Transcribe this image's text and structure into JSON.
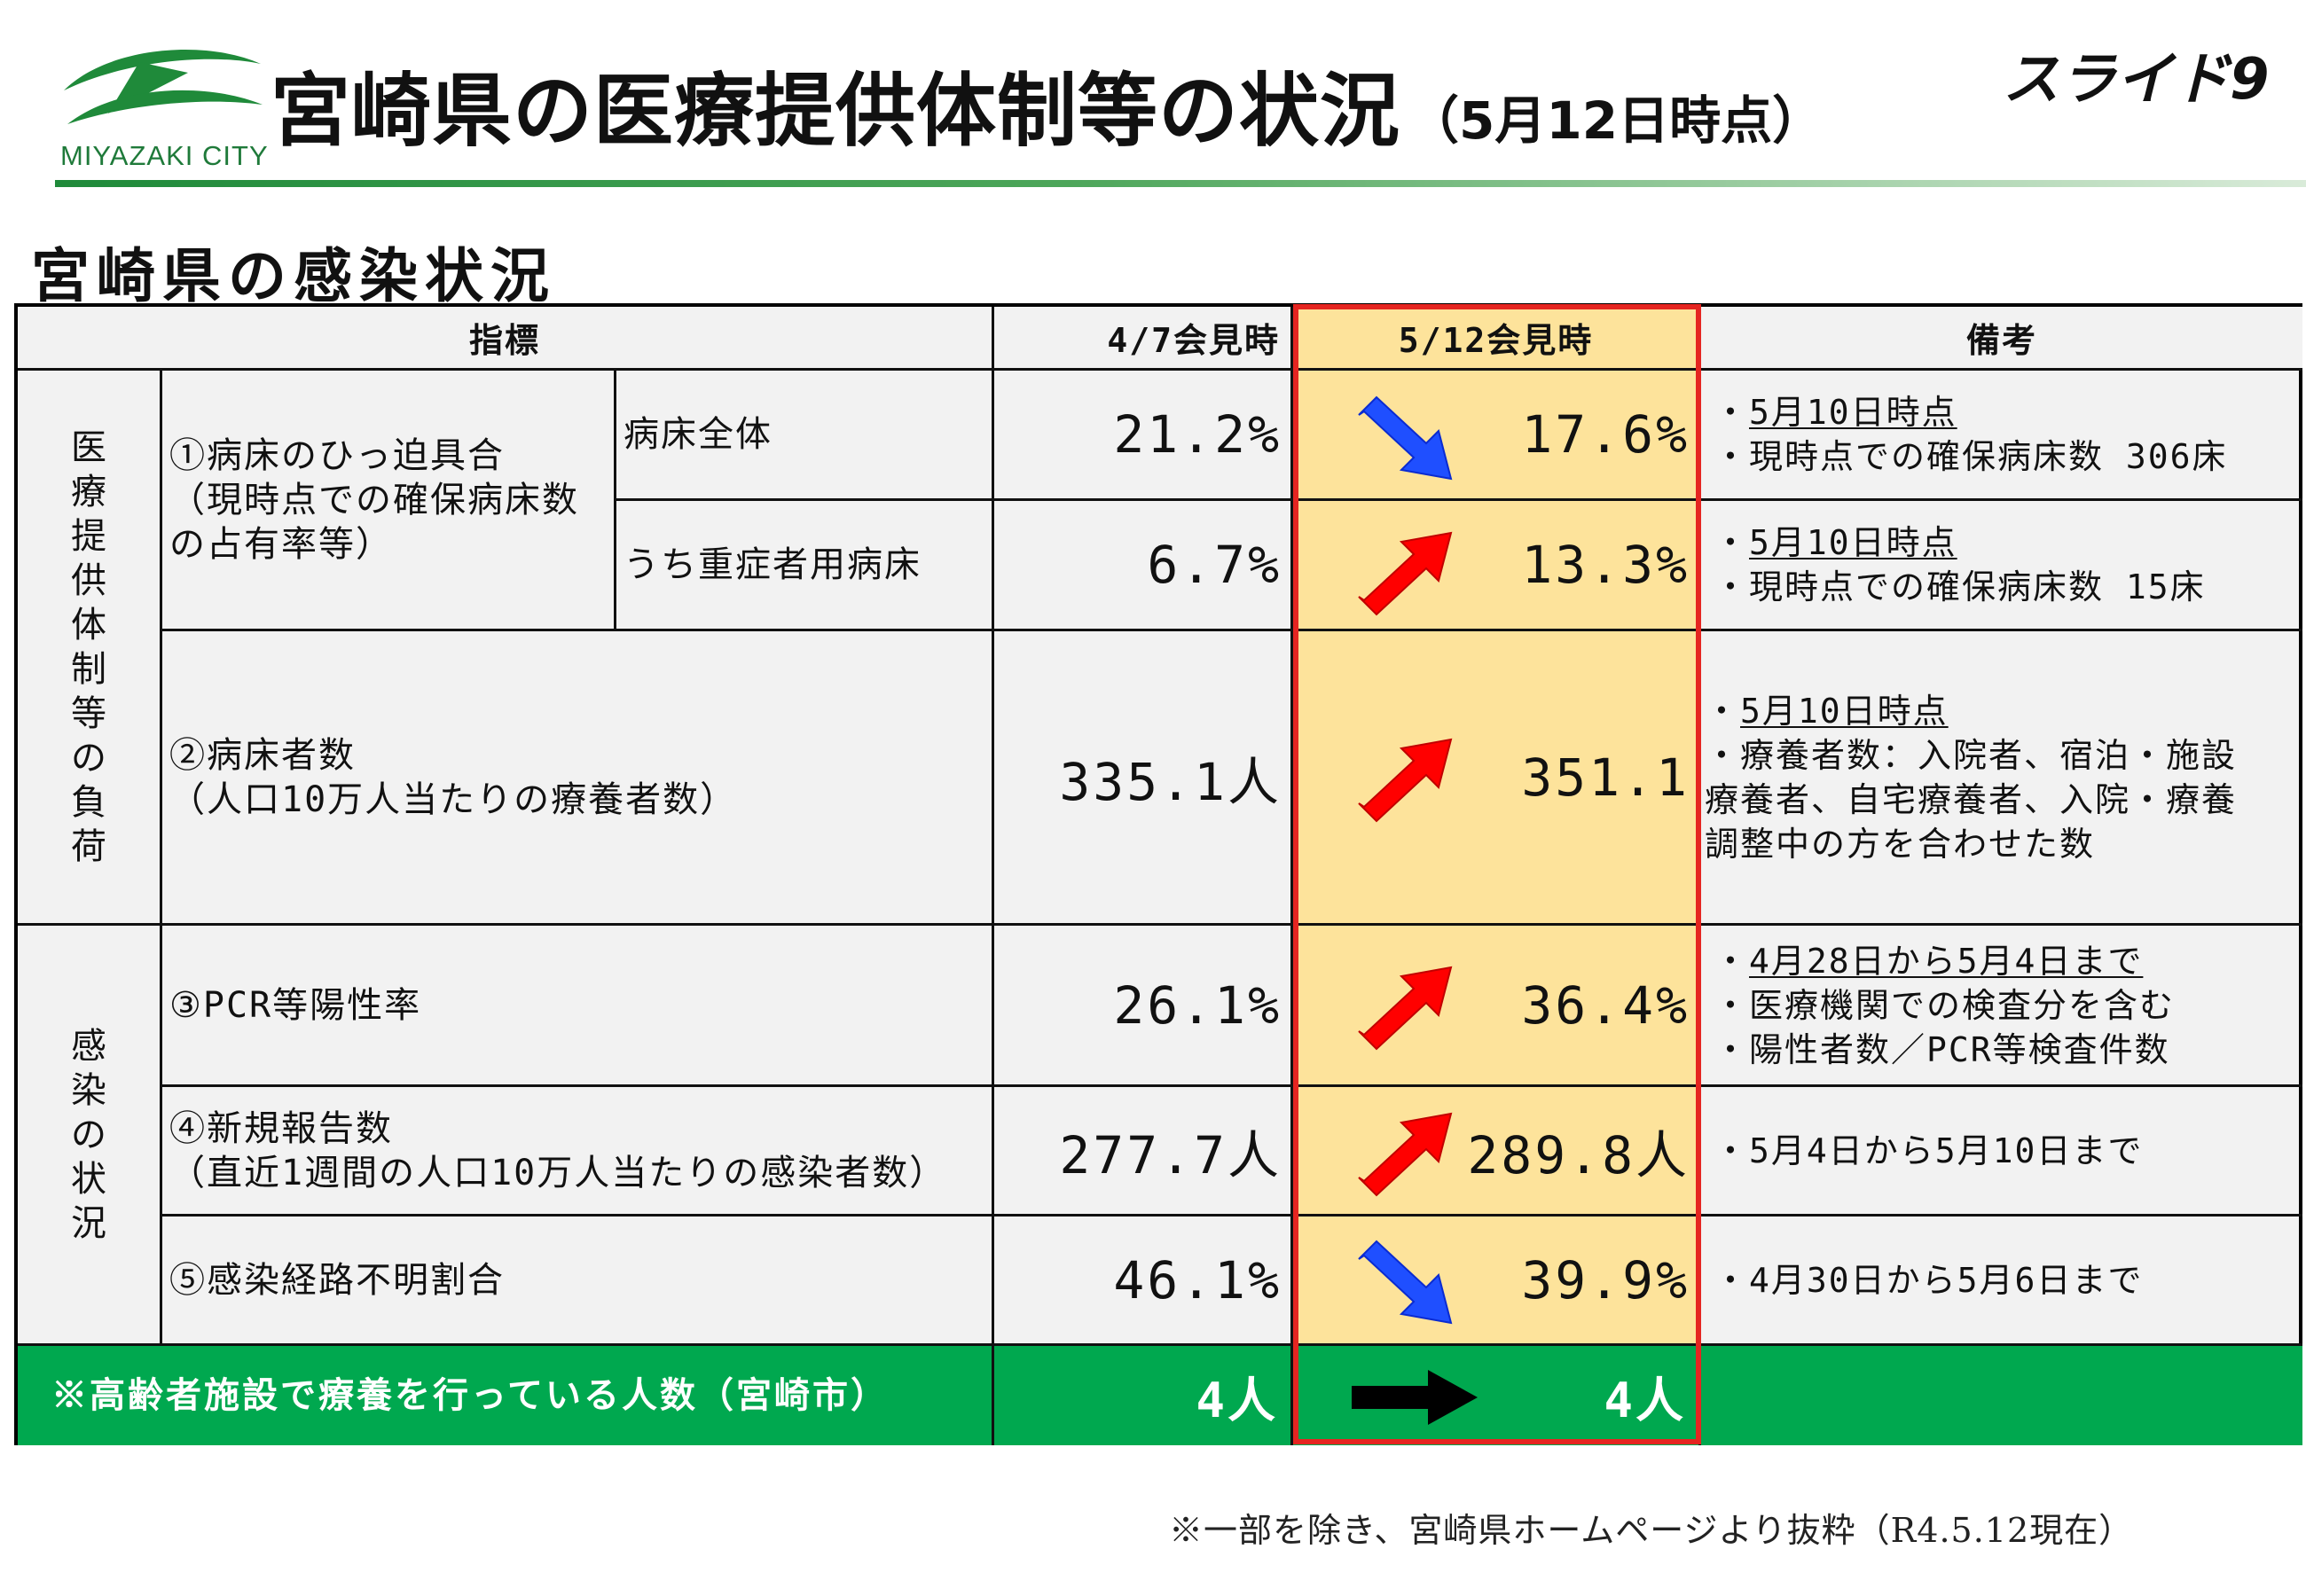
{
  "header": {
    "logo_text": "MIYAZAKI CITY",
    "title_main": "宮崎県の医療提供体制等の状況",
    "title_date": "（5月12日時点）",
    "slide_number": "スライド9"
  },
  "section_title": "宮崎県の感染状況",
  "table": {
    "headers": {
      "indicator": "指標",
      "apr7": "4/7会見時",
      "may12": "5/12会見時",
      "remarks": "備考"
    },
    "group_medical": [
      "医",
      "療",
      "提",
      "供",
      "体",
      "制",
      "等",
      "の",
      "負",
      "荷"
    ],
    "group_infection": [
      "感",
      "染",
      "の",
      "状",
      "況"
    ],
    "rows": {
      "r1": {
        "label_lines": [
          "①病床のひっ迫具合",
          "（現時点での確保病床数",
          "の占有率等）"
        ],
        "sub_all": "病床全体",
        "sub_severe": "うち重症者用病床",
        "all_apr7": "21.2%",
        "all_may12": "17.6%",
        "all_notes": [
          "5月10日時点",
          "現時点での確保病床数 306床"
        ],
        "severe_apr7": "6.7%",
        "severe_may12": "13.3%",
        "severe_notes": [
          "5月10日時点",
          "現時点での確保病床数 15床"
        ]
      },
      "r2": {
        "label_lines": [
          "②病床者数",
          "（人口10万人当たりの療養者数）"
        ],
        "apr7": "335.1人",
        "may12": "351.1",
        "notes": [
          "5月10日時点",
          "療養者数：入院者、宿泊・施設",
          "療養者、自宅療養者、入院・療養",
          "調整中の方を合わせた数"
        ]
      },
      "r3": {
        "label": "③PCR等陽性率",
        "apr7": "26.1%",
        "may12": "36.4%",
        "notes": [
          "4月28日から5月4日まで",
          "医療機関での検査分を含む",
          "陽性者数／PCR等検査件数"
        ]
      },
      "r4": {
        "label_lines": [
          "④新規報告数",
          "（直近1週間の人口10万人当たりの感染者数）"
        ],
        "apr7": "277.7人",
        "may12": "289.8人",
        "notes": [
          "5月4日から5月10日まで"
        ]
      },
      "r5": {
        "label": "⑤感染経路不明割合",
        "apr7": "46.1%",
        "may12": "39.9%",
        "notes": [
          "4月30日から5月6日まで"
        ]
      },
      "facility": {
        "label": "※高齢者施設で療養を行っている人数（宮崎市）",
        "apr7": "4人",
        "may12": "4人"
      }
    },
    "trend_icons": {
      "r1_all": "down-right-arrow-icon",
      "r1_severe": "up-right-arrow-icon",
      "r2": "up-right-arrow-icon",
      "r3": "up-right-arrow-icon",
      "r4": "up-right-arrow-icon",
      "r5": "down-right-arrow-icon",
      "facility": "right-arrow-icon"
    }
  },
  "colors": {
    "highlight_fill": "#fde39b",
    "highlight_border": "#e52521",
    "increase_arrow": "#ff0000",
    "decrease_arrow": "#1f4fff",
    "facility_row": "#00a84f",
    "brand_green": "#1f7a3a"
  },
  "footnote": "※一部を除き、宮崎県ホームページより抜粋（R4.5.12現在）"
}
